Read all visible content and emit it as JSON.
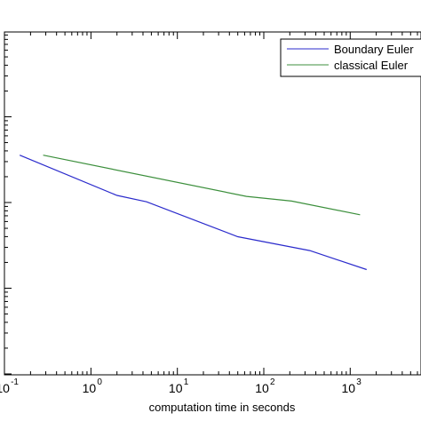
{
  "chart_data": {
    "type": "line",
    "xscale": "log",
    "yscale": "log",
    "xlabel": "computation time in seconds",
    "ylabel": "",
    "title": "",
    "xlim": [
      0.1,
      3000
    ],
    "ylim": [
      0.0001,
      1
    ],
    "x_ticks": [
      {
        "base": "10",
        "exp": "-1",
        "value": 0.1
      },
      {
        "base": "10",
        "exp": "0",
        "value": 1
      },
      {
        "base": "10",
        "exp": "1",
        "value": 10
      },
      {
        "base": "10",
        "exp": "2",
        "value": 100
      },
      {
        "base": "10",
        "exp": "3",
        "value": 1000
      }
    ],
    "y_major_ticks": [
      0.01
    ],
    "grid": false,
    "legend_position": "top-right",
    "series": [
      {
        "name": "Boundary Euler",
        "color": "#2b2bcc",
        "x": [
          0.15,
          2.0,
          4.4,
          50,
          340,
          1550
        ],
        "y": [
          0.0357,
          0.0121,
          0.0102,
          0.00399,
          0.00275,
          0.00165
        ]
      },
      {
        "name": "classical Euler",
        "color": "#3c8f3c",
        "x": [
          0.28,
          63,
          210,
          1300
        ],
        "y": [
          0.0357,
          0.0118,
          0.0104,
          0.0072
        ]
      }
    ]
  }
}
